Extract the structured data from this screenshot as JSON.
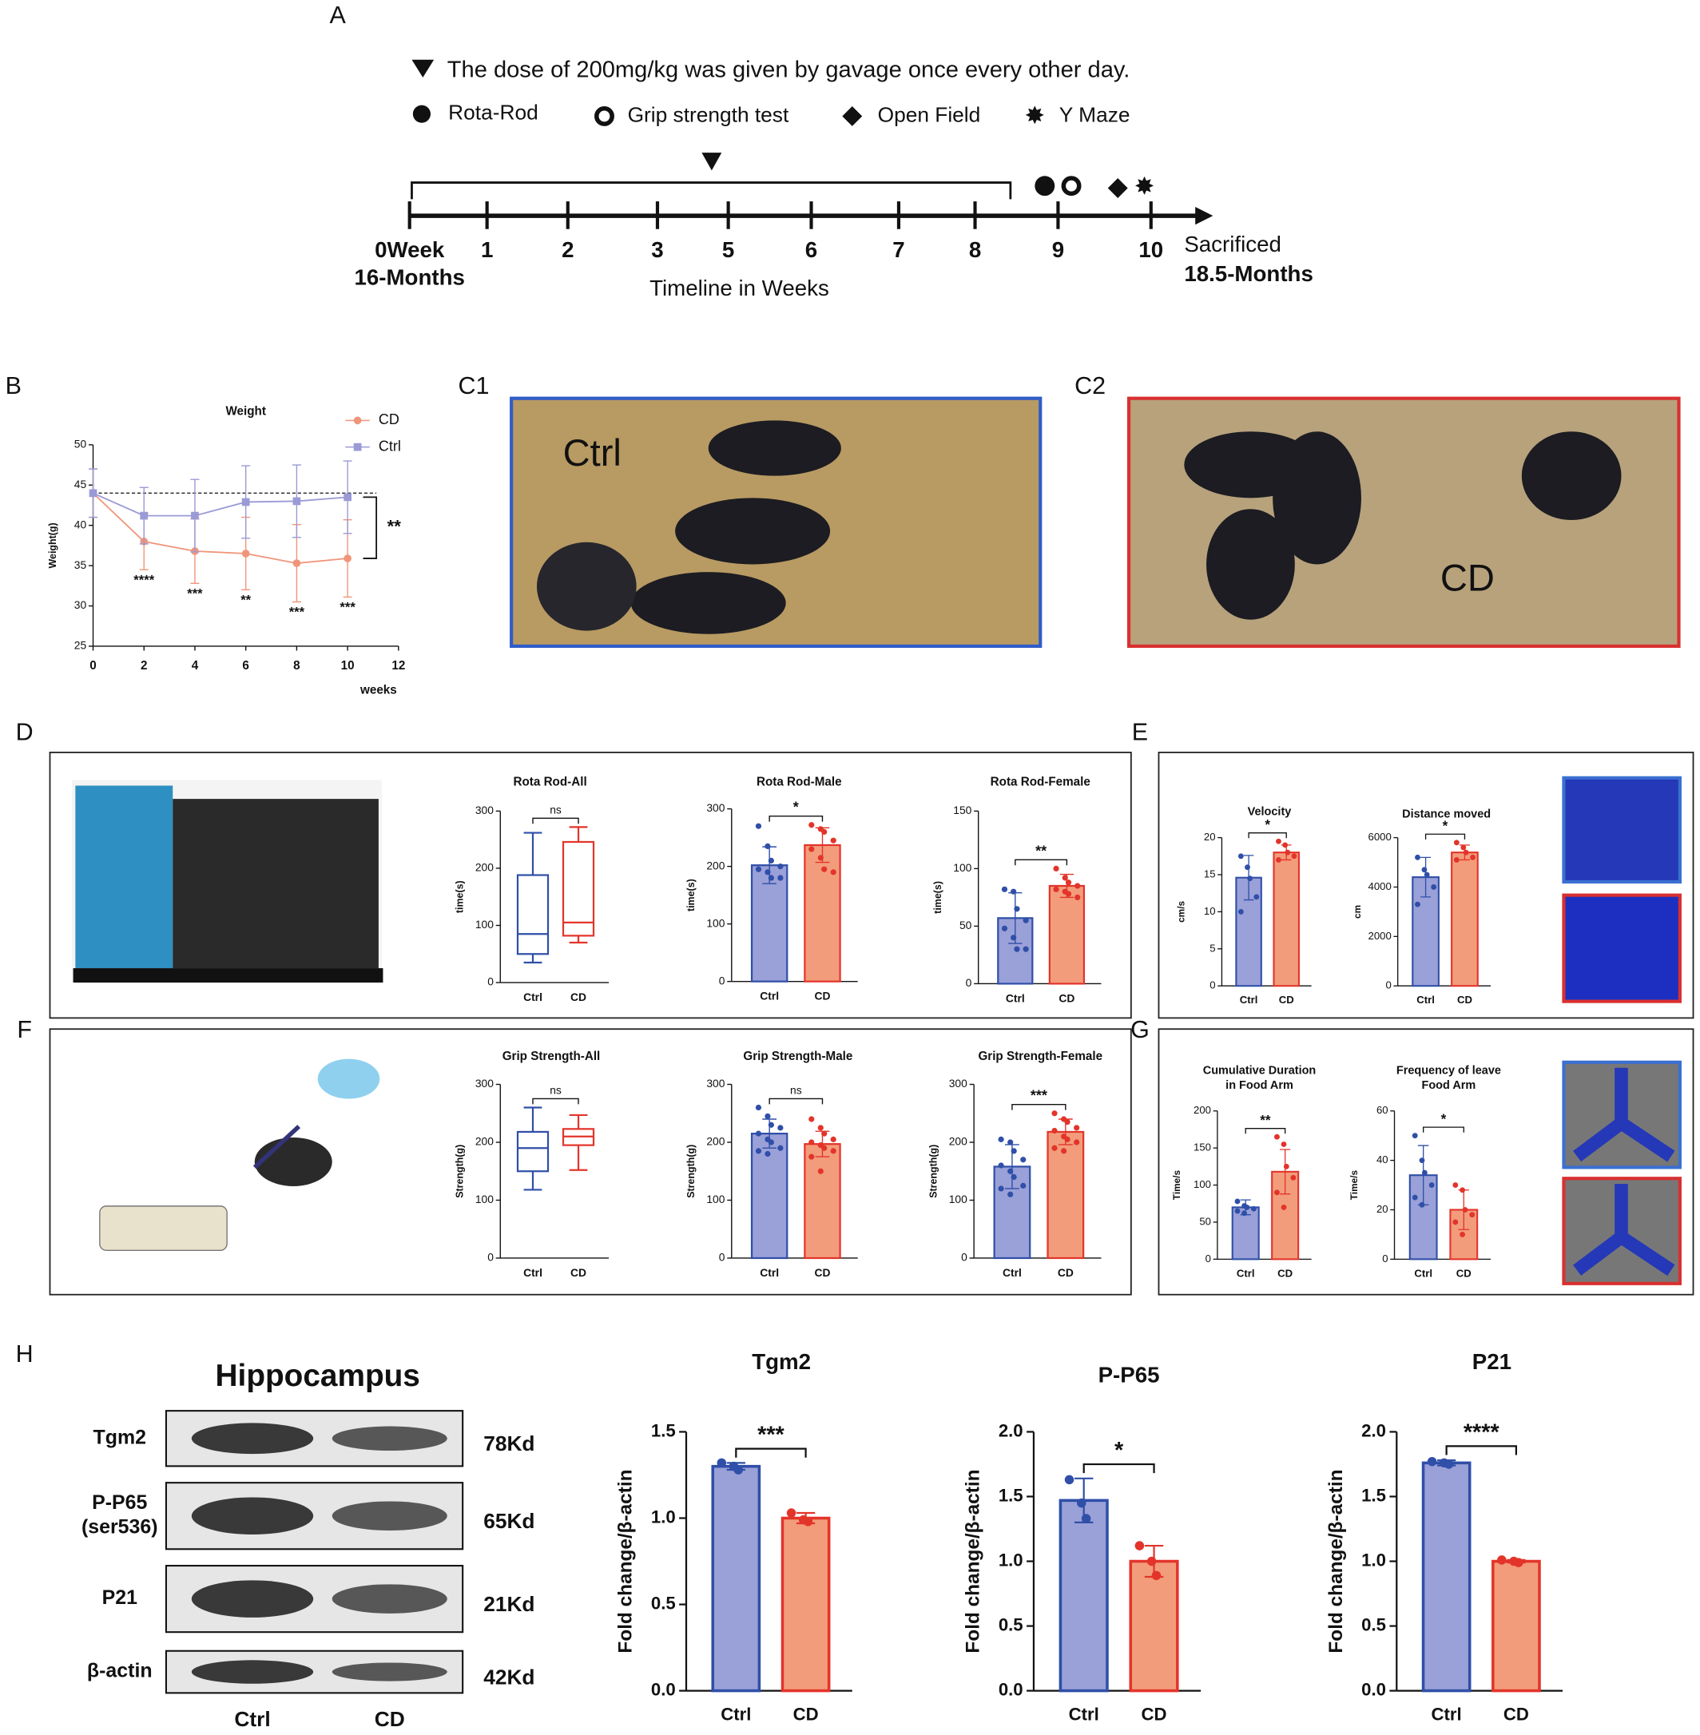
{
  "panel_labels": [
    "A",
    "B",
    "C1",
    "C2",
    "D",
    "E",
    "F",
    "G",
    "H"
  ],
  "timeline": {
    "dose_note": "The dose of 200mg/kg was given by gavage once every other day.",
    "tests": [
      "Rota-Rod",
      "Grip strength test",
      "Open Field",
      "Y Maze"
    ],
    "ticks": [
      "0Week",
      "1",
      "2",
      "3",
      "5",
      "6",
      "7",
      "8",
      "9",
      "10"
    ],
    "start_age": "16-Months",
    "end_label": "Sacrificed",
    "end_age": "18.5-Months",
    "axis_title": "Timeline in Weeks"
  },
  "photos": [
    "Ctrl",
    "CD"
  ],
  "blot": {
    "title": "Hippocampus",
    "rows": [
      {
        "label": [
          "Tgm2"
        ],
        "size": "78Kd"
      },
      {
        "label": [
          "P-P65",
          "(ser536)"
        ],
        "size": "65Kd"
      },
      {
        "label": [
          "P21"
        ],
        "size": "21Kd"
      },
      {
        "label": [
          "β-actin"
        ],
        "size": "42Kd"
      }
    ],
    "lanes": [
      "Ctrl",
      "CD"
    ]
  },
  "chart_data": [
    {
      "type": "line",
      "title": "Weight",
      "ylabel": "Weight(g)",
      "xlabel": "weeks",
      "x": [
        0,
        2,
        4,
        6,
        8,
        10
      ],
      "xlim": [
        0,
        12
      ],
      "xticks": [
        0,
        2,
        4,
        6,
        8,
        10,
        12
      ],
      "ylim": [
        25,
        50
      ],
      "yticks": [
        25,
        30,
        35,
        40,
        45,
        50
      ],
      "reference_line": 44,
      "series": [
        {
          "name": "CD",
          "color": "#f0957a",
          "marker": "circle",
          "values": [
            44,
            38,
            36.8,
            36.5,
            35.3,
            35.9
          ],
          "errors": [
            3,
            3.5,
            4,
            4.5,
            4.8,
            4.8
          ]
        },
        {
          "name": "Ctrl",
          "color": "#9a9ad6",
          "marker": "square",
          "values": [
            44,
            41.2,
            41.2,
            42.9,
            43,
            43.5
          ],
          "errors": [
            3,
            3.5,
            4.5,
            4.5,
            4.5,
            4.5
          ]
        }
      ],
      "annotations": [
        null,
        "****",
        "***",
        "**",
        "***",
        "***"
      ],
      "significance": "**"
    },
    {
      "type": "box",
      "title": "Rota Rod-All",
      "ylabel": "time(s)",
      "categories": [
        "Ctrl",
        "CD"
      ],
      "colors": [
        "#2f4fa8",
        "#e3342a"
      ],
      "ylim": [
        0,
        300
      ],
      "yticks": [
        0,
        100,
        200,
        300
      ],
      "boxes": [
        {
          "min": 35,
          "q1": 50,
          "median": 85,
          "q3": 188,
          "max": 262
        },
        {
          "min": 70,
          "q1": 82,
          "median": 105,
          "q3": 246,
          "max": 272
        }
      ],
      "significance": "ns"
    },
    {
      "type": "bar",
      "title": "Rota Rod-Male",
      "ylabel": "time(s)",
      "categories": [
        "Ctrl",
        "CD"
      ],
      "colors": [
        "#2f4fa8",
        "#e3342a"
      ],
      "fills": [
        "#9aa0d8",
        "#f29c7b"
      ],
      "ylim": [
        0,
        300
      ],
      "yticks": [
        0,
        100,
        200,
        300
      ],
      "values": [
        202,
        237
      ],
      "errors": [
        32,
        30
      ],
      "points": [
        [
          270,
          235,
          210,
          200,
          195,
          190,
          180,
          180
        ],
        [
          272,
          265,
          260,
          245,
          230,
          215,
          195,
          190
        ]
      ],
      "significance": "*"
    },
    {
      "type": "bar",
      "title": "Rota Rod-Female",
      "ylabel": "time(s)",
      "categories": [
        "Ctrl",
        "CD"
      ],
      "colors": [
        "#2f4fa8",
        "#e3342a"
      ],
      "fills": [
        "#9aa0d8",
        "#f29c7b"
      ],
      "ylim": [
        0,
        150
      ],
      "yticks": [
        0,
        50,
        100,
        150
      ],
      "values": [
        57,
        85
      ],
      "errors": [
        22,
        10
      ],
      "points": [
        [
          82,
          80,
          65,
          55,
          48,
          40,
          30,
          30
        ],
        [
          100,
          92,
          88,
          85,
          82,
          80,
          78,
          75
        ]
      ],
      "significance": "**"
    },
    {
      "type": "bar",
      "title": "Velocity",
      "ylabel": "cm/s",
      "categories": [
        "Ctrl",
        "CD"
      ],
      "colors": [
        "#2f4fa8",
        "#e3342a"
      ],
      "fills": [
        "#9aa0d8",
        "#f29c7b"
      ],
      "ylim": [
        0,
        20
      ],
      "yticks": [
        0,
        5,
        10,
        15,
        20
      ],
      "values": [
        14.6,
        18
      ],
      "errors": [
        3,
        1
      ],
      "points": [
        [
          17.5,
          16,
          14.5,
          12,
          10
        ],
        [
          19.5,
          19,
          18,
          17.5,
          17
        ]
      ],
      "significance": "*"
    },
    {
      "type": "bar",
      "title": "Distance moved",
      "ylabel": "cm",
      "categories": [
        "Ctrl",
        "CD"
      ],
      "colors": [
        "#2f4fa8",
        "#e3342a"
      ],
      "fills": [
        "#9aa0d8",
        "#f29c7b"
      ],
      "ylim": [
        0,
        6000
      ],
      "yticks": [
        0,
        2000,
        4000,
        6000
      ],
      "values": [
        4400,
        5400
      ],
      "errors": [
        800,
        300
      ],
      "points": [
        [
          5200,
          4700,
          4500,
          4000,
          3300
        ],
        [
          5800,
          5600,
          5400,
          5200,
          5100
        ]
      ],
      "significance": "*"
    },
    {
      "type": "box",
      "title": "Grip Strength-All",
      "ylabel": "Strength(g)",
      "categories": [
        "Ctrl",
        "CD"
      ],
      "colors": [
        "#2f4fa8",
        "#e3342a"
      ],
      "ylim": [
        0,
        300
      ],
      "yticks": [
        0,
        100,
        200,
        300
      ],
      "boxes": [
        {
          "min": 118,
          "q1": 150,
          "median": 190,
          "q3": 218,
          "max": 260
        },
        {
          "min": 152,
          "q1": 195,
          "median": 210,
          "q3": 223,
          "max": 247
        }
      ],
      "significance": "ns"
    },
    {
      "type": "bar",
      "title": "Grip Strength-Male",
      "ylabel": "Strength(g)",
      "categories": [
        "Ctrl",
        "CD"
      ],
      "colors": [
        "#2f4fa8",
        "#e3342a"
      ],
      "fills": [
        "#9aa0d8",
        "#f29c7b"
      ],
      "ylim": [
        0,
        300
      ],
      "yticks": [
        0,
        100,
        200,
        300
      ],
      "values": [
        215,
        197
      ],
      "errors": [
        25,
        22
      ],
      "points": [
        [
          260,
          245,
          230,
          225,
          215,
          205,
          200,
          190,
          185,
          180
        ],
        [
          240,
          225,
          215,
          205,
          200,
          195,
          190,
          185,
          175,
          150
        ]
      ],
      "significance": "ns"
    },
    {
      "type": "bar",
      "title": "Grip Strength-Female",
      "ylabel": "Strength(g)",
      "categories": [
        "Ctrl",
        "CD"
      ],
      "colors": [
        "#2f4fa8",
        "#e3342a"
      ],
      "fills": [
        "#9aa0d8",
        "#f29c7b"
      ],
      "ylim": [
        0,
        300
      ],
      "yticks": [
        0,
        100,
        200,
        300
      ],
      "values": [
        158,
        218
      ],
      "errors": [
        38,
        22
      ],
      "points": [
        [
          205,
          200,
          185,
          170,
          160,
          150,
          140,
          125,
          120,
          110
        ],
        [
          250,
          240,
          235,
          225,
          220,
          210,
          205,
          200,
          190,
          185
        ]
      ],
      "significance": "***"
    },
    {
      "type": "bar",
      "title": [
        "Cumulative Duration",
        "in Food Arm"
      ],
      "ylabel": "Time/s",
      "categories": [
        "Ctrl",
        "CD"
      ],
      "colors": [
        "#2f4fa8",
        "#e3342a"
      ],
      "fills": [
        "#9aa0d8",
        "#f29c7b"
      ],
      "ylim": [
        0,
        200
      ],
      "yticks": [
        0,
        50,
        100,
        150,
        200
      ],
      "values": [
        70,
        118
      ],
      "errors": [
        10,
        30
      ],
      "points": [
        [
          78,
          72,
          70,
          68,
          65,
          62
        ],
        [
          165,
          155,
          125,
          110,
          90,
          70
        ]
      ],
      "significance": "**"
    },
    {
      "type": "bar",
      "title": [
        "Frequency of leave",
        "Food Arm"
      ],
      "ylabel": "Time/s",
      "categories": [
        "Ctrl",
        "CD"
      ],
      "colors": [
        "#2f4fa8",
        "#e3342a"
      ],
      "fills": [
        "#9aa0d8",
        "#f29c7b"
      ],
      "ylim": [
        0,
        60
      ],
      "yticks": [
        0,
        20,
        40,
        60
      ],
      "values": [
        34,
        20
      ],
      "errors": [
        12,
        8
      ],
      "points": [
        [
          50,
          40,
          35,
          30,
          25,
          22
        ],
        [
          30,
          28,
          20,
          18,
          15,
          10
        ]
      ],
      "significance": "*"
    },
    {
      "type": "bar",
      "title": "Tgm2",
      "ylabel": "Fold change/β-actin",
      "categories": [
        "Ctrl",
        "CD"
      ],
      "colors": [
        "#2f4fa8",
        "#e3342a"
      ],
      "fills": [
        "#9aa0d8",
        "#f29c7b"
      ],
      "ylim": [
        0,
        1.5
      ],
      "yticks": [
        {
          "value": 0,
          "label": "0.0"
        },
        {
          "value": 0.5,
          "label": "0.5"
        },
        {
          "value": 1,
          "label": "1.0"
        },
        {
          "value": 1.5,
          "label": "1.5"
        }
      ],
      "values": [
        1.3,
        1.0
      ],
      "errors": [
        0.02,
        0.03
      ],
      "points": [
        [
          1.32,
          1.3,
          1.28
        ],
        [
          1.03,
          0.99,
          0.98
        ]
      ],
      "significance": "***"
    },
    {
      "type": "bar",
      "title": "P-P65",
      "ylabel": "Fold change/β-actin",
      "categories": [
        "Ctrl",
        "CD"
      ],
      "colors": [
        "#2f4fa8",
        "#e3342a"
      ],
      "fills": [
        "#9aa0d8",
        "#f29c7b"
      ],
      "ylim": [
        0,
        2
      ],
      "yticks": [
        {
          "value": 0,
          "label": "0.0"
        },
        {
          "value": 0.5,
          "label": "0.5"
        },
        {
          "value": 1,
          "label": "1.0"
        },
        {
          "value": 1.5,
          "label": "1.5"
        },
        {
          "value": 2,
          "label": "2.0"
        }
      ],
      "values": [
        1.47,
        1.0
      ],
      "errors": [
        0.17,
        0.12
      ],
      "points": [
        [
          1.63,
          1.45,
          1.33
        ],
        [
          1.12,
          1.0,
          0.89
        ]
      ],
      "significance": "*"
    },
    {
      "type": "bar",
      "title": "P21",
      "ylabel": "Fold change/β-actin",
      "categories": [
        "Ctrl",
        "CD"
      ],
      "colors": [
        "#2f4fa8",
        "#e3342a"
      ],
      "fills": [
        "#9aa0d8",
        "#f29c7b"
      ],
      "ylim": [
        0,
        2
      ],
      "yticks": [
        {
          "value": 0,
          "label": "0.0"
        },
        {
          "value": 0.5,
          "label": "0.5"
        },
        {
          "value": 1,
          "label": "1.0"
        },
        {
          "value": 1.5,
          "label": "1.5"
        },
        {
          "value": 2,
          "label": "2.0"
        }
      ],
      "values": [
        1.76,
        1.0
      ],
      "errors": [
        0.02,
        0.01
      ],
      "points": [
        [
          1.77,
          1.76,
          1.75
        ],
        [
          1.01,
          1.0,
          0.99
        ]
      ],
      "significance": "****"
    }
  ]
}
